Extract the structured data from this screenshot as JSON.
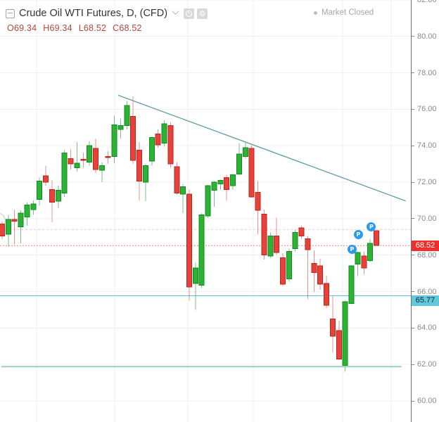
{
  "header": {
    "symbol_title": "Crude Oil WTI Futures, D, (CFD)",
    "collapse_icon": "minus-square-icon",
    "dropdown_icon": "caret-down-icon",
    "toolbar_icons": [
      "data-mode-icon",
      "settings-gear-icon"
    ],
    "ohlc": {
      "open_label": "O",
      "open": "69.34",
      "high_label": "H",
      "high": "69.34",
      "low_label": "L",
      "low": "68.52",
      "close_label": "C",
      "close": "68.52"
    },
    "market_status": "Market Closed"
  },
  "price_scale": {
    "ticks": [
      "82.00",
      "80.00",
      "78.00",
      "76.00",
      "74.00",
      "72.00",
      "70.00",
      "68.00",
      "66.00",
      "64.00",
      "62.00",
      "60.00"
    ],
    "last_price_label": "68.52",
    "alert_price_label": "65.77"
  },
  "colors": {
    "up_fill": "#2db234",
    "up_border": "#0f8c21",
    "up_wick": "rgba(17,140,50,0.55)",
    "down_fill": "#e6413a",
    "down_border": "#bd251e",
    "down_wick": "rgba(205,60,50,0.55)",
    "grid": "#f1eff0",
    "axis_line": "#6f6f6f",
    "tick_text": "#8a8a8a",
    "trendline": "#5f9fa3",
    "support_line": "#8cc8bd",
    "alert_line": "#56c3d8",
    "order_line": "rgba(236,100,100,0.35)",
    "last_price_line": "#f56a6a",
    "last_tag_bg": "#f02e2e",
    "last_tag_text": "#ffffff",
    "alert_tag_bg": "#62c9dc",
    "alert_tag_text": "#0c2a33",
    "badge_bg": "#2a9bf1",
    "badge_text": "#ffffff",
    "watermark": "#d8d8d8"
  },
  "chart_data": {
    "type": "candlestick",
    "title": "Crude Oil WTI Futures, D, (CFD)",
    "interval": "D",
    "instrument_type": "CFD",
    "market_status": "Market Closed",
    "ohlc_display": {
      "open": 69.34,
      "high": 69.34,
      "low": 68.52,
      "close": 68.52
    },
    "ylim": [
      58.8,
      82.0
    ],
    "grid": true,
    "legend_position": "top-left",
    "candles": [
      [
        69.7,
        69.85,
        68.9,
        69.05
      ],
      [
        69.15,
        70.2,
        68.45,
        69.95
      ],
      [
        69.95,
        70.5,
        68.6,
        69.85
      ],
      [
        69.55,
        70.45,
        68.65,
        70.3
      ],
      [
        70.1,
        70.9,
        69.6,
        70.75
      ],
      [
        70.5,
        71.0,
        70.2,
        70.8
      ],
      [
        71.05,
        72.25,
        70.7,
        72.05
      ],
      [
        72.35,
        72.9,
        71.8,
        72.0
      ],
      [
        71.6,
        72.1,
        69.8,
        70.9
      ],
      [
        70.95,
        71.8,
        70.6,
        71.55
      ],
      [
        71.4,
        73.75,
        71.2,
        73.6
      ],
      [
        73.3,
        73.8,
        72.7,
        73.0
      ],
      [
        72.8,
        74.2,
        72.6,
        73.05
      ],
      [
        73.25,
        73.6,
        72.8,
        73.2
      ],
      [
        73.1,
        74.25,
        72.9,
        74.0
      ],
      [
        73.85,
        74.4,
        72.5,
        72.7
      ],
      [
        72.65,
        73.1,
        72.0,
        72.9
      ],
      [
        73.4,
        73.7,
        73.0,
        73.35
      ],
      [
        73.4,
        75.65,
        73.05,
        75.15
      ],
      [
        74.9,
        75.5,
        74.4,
        75.1
      ],
      [
        75.1,
        76.45,
        74.9,
        76.2
      ],
      [
        75.6,
        76.7,
        73.0,
        73.2
      ],
      [
        73.75,
        74.2,
        71.0,
        72.05
      ],
      [
        72.0,
        73.0,
        70.95,
        72.9
      ],
      [
        73.15,
        74.5,
        72.9,
        74.45
      ],
      [
        74.65,
        74.9,
        73.9,
        74.05
      ],
      [
        74.15,
        75.4,
        73.95,
        75.2
      ],
      [
        75.1,
        75.3,
        72.8,
        73.0
      ],
      [
        72.85,
        73.1,
        71.3,
        71.4
      ],
      [
        71.35,
        71.9,
        70.3,
        71.75
      ],
      [
        71.35,
        71.6,
        65.5,
        66.25
      ],
      [
        66.45,
        67.6,
        65.0,
        67.3
      ],
      [
        66.35,
        70.3,
        66.2,
        70.2
      ],
      [
        70.15,
        71.85,
        70.05,
        71.8
      ],
      [
        71.55,
        72.05,
        70.65,
        72.0
      ],
      [
        71.9,
        72.15,
        71.6,
        72.1
      ],
      [
        72.25,
        72.4,
        71.0,
        71.6
      ],
      [
        71.8,
        72.45,
        71.6,
        72.4
      ],
      [
        72.45,
        74.15,
        72.4,
        73.55
      ],
      [
        73.4,
        74.2,
        73.3,
        73.9
      ],
      [
        73.85,
        74.0,
        71.15,
        71.2
      ],
      [
        71.45,
        72.05,
        69.15,
        70.45
      ],
      [
        70.25,
        70.5,
        67.75,
        68.0
      ],
      [
        67.95,
        69.25,
        67.85,
        69.05
      ],
      [
        69.05,
        70.05,
        68.0,
        68.15
      ],
      [
        67.85,
        68.1,
        66.3,
        66.4
      ],
      [
        66.7,
        68.35,
        66.55,
        68.2
      ],
      [
        68.35,
        69.4,
        68.2,
        69.25
      ],
      [
        69.5,
        69.6,
        68.9,
        69.05
      ],
      [
        68.9,
        69.05,
        65.6,
        68.3
      ],
      [
        67.55,
        68.25,
        66.0,
        67.05
      ],
      [
        67.4,
        67.8,
        66.1,
        66.4
      ],
      [
        66.45,
        66.85,
        65.1,
        65.25
      ],
      [
        64.5,
        65.75,
        62.65,
        63.55
      ],
      [
        63.85,
        64.4,
        62.25,
        62.3
      ],
      [
        61.95,
        65.5,
        61.6,
        65.45
      ],
      [
        65.35,
        67.45,
        65.3,
        67.4
      ],
      [
        67.5,
        68.2,
        66.85,
        68.15
      ],
      [
        67.95,
        68.2,
        66.95,
        67.3
      ],
      [
        67.7,
        68.9,
        67.6,
        68.65
      ],
      [
        69.34,
        69.34,
        68.52,
        68.52
      ]
    ],
    "overlays": {
      "trendline": {
        "type": "trend-line",
        "from": {
          "candle": 18.6,
          "price": 76.77
        },
        "to": {
          "candle": 64.7,
          "price": 70.97
        }
      },
      "support_line": {
        "type": "horizontal-line",
        "price": 61.88,
        "from_candle": -0.1,
        "to_candle": 64.0
      },
      "alert_line": {
        "type": "horizontal-line",
        "price": 65.77,
        "full_width": true
      },
      "order_line": {
        "type": "horizontal-line",
        "price": 69.4,
        "full_width": true,
        "style": "faint-dashed"
      },
      "last_price_line": {
        "type": "last-price-line",
        "price": 68.52,
        "full_width": true
      }
    },
    "markers": [
      {
        "label": "P",
        "candle": 56.1,
        "price": 68.3
      },
      {
        "label": "P",
        "candle": 57.1,
        "price": 69.12
      },
      {
        "label": "P",
        "candle": 59.2,
        "price": 69.55
      }
    ]
  }
}
